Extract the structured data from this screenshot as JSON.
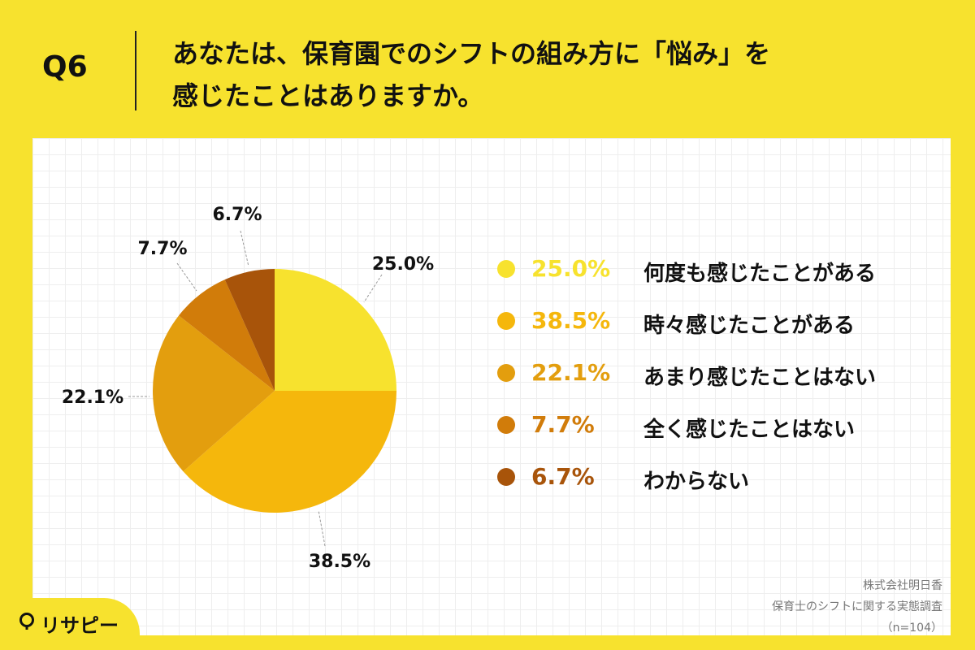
{
  "header": {
    "q_label": "Q6",
    "question_line1": "あなたは、保育園でのシフトの組み方に「悩み」を",
    "question_line2": "感じたことはありますか。"
  },
  "colors": {
    "background": "#f7e22e",
    "slice_colors": [
      "#f7e22e",
      "#f5b70c",
      "#e39e0e",
      "#d17c0a",
      "#a8540a"
    ]
  },
  "chart_data": {
    "type": "pie",
    "start": "12 o'clock, clockwise",
    "categories": [
      "何度も感じたことがある",
      "時々感じたことがある",
      "あまり感じたことはない",
      "全く感じたことはない",
      "わからない"
    ],
    "values": [
      25.0,
      38.5,
      22.1,
      7.7,
      6.7
    ],
    "data_labels": [
      "25.0%",
      "38.5%",
      "22.1%",
      "7.7%",
      "6.7%"
    ]
  },
  "legend": {
    "items": [
      {
        "value": "25.0%",
        "label": "何度も感じたことがある"
      },
      {
        "value": "38.5%",
        "label": "時々感じたことがある"
      },
      {
        "value": "22.1%",
        "label": "あまり感じたことはない"
      },
      {
        "value": "7.7%",
        "label": "全く感じたことはない"
      },
      {
        "value": "6.7%",
        "label": "わからない"
      }
    ]
  },
  "source": {
    "company": "株式会社明日香",
    "survey": "保育士のシフトに関する実態調査",
    "sample": "（n=104）"
  },
  "logo": {
    "text": "リサピー",
    "icon": "map-pin-icon"
  }
}
